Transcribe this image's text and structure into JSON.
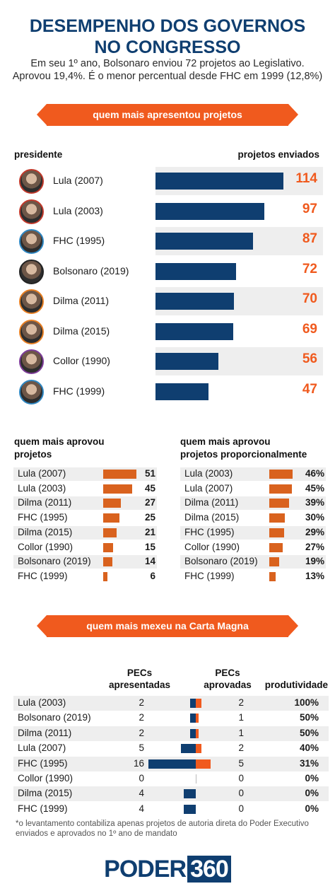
{
  "header": {
    "title_line1": "DESEMPENHO DOS GOVERNOS",
    "title_line2": "NO CONGRESSO",
    "subtitle_line1": "Em seu 1º ano, Bolsonaro enviou 72 projetos ao Legislativo.",
    "subtitle_line2": "Aprovou 19,4%. É o menor percentual desde FHC em 1999 (12,8%)"
  },
  "section1": {
    "banner": "quem mais apresentou projetos",
    "col_left": "presidente",
    "col_right": "projetos enviados"
  },
  "section2": {
    "left_title_line1": "quem mais aprovou",
    "left_title_line2": "projetos",
    "right_title_line1": "quem mais aprovou",
    "right_title_line2": "projetos proporcionalmente"
  },
  "section3": {
    "banner": "quem mais mexeu na Carta Magna",
    "col_presented_line1": "PECs",
    "col_presented_line2": "apresentadas",
    "col_approved_line1": "PECs",
    "col_approved_line2": "aprovadas",
    "col_productivity": "produtividade"
  },
  "footnote_line1": "*o levantamento contabiliza apenas projetos de autoria direta do Poder Executivo",
  "footnote_line2": "enviados e aprovados no 1º ano de mandato",
  "logo_left": "PODER",
  "logo_right": "360",
  "colors": {
    "navy": "#0f3e70",
    "orange": "#f05a1e",
    "orange_bar": "#d9621e",
    "row_gray": "#eeeeee"
  },
  "chart_data": [
    {
      "type": "bar",
      "orientation": "horizontal",
      "title": "quem mais apresentou projetos",
      "xlabel": "projetos enviados",
      "ylabel": "presidente",
      "categories": [
        "Lula (2007)",
        "Lula (2003)",
        "FHC (1995)",
        "Bolsonaro (2019)",
        "Dilma (2011)",
        "Dilma (2015)",
        "Collor (1990)",
        "FHC (1999)"
      ],
      "values": [
        114,
        97,
        87,
        72,
        70,
        69,
        56,
        47
      ],
      "xlim": [
        0,
        114
      ]
    },
    {
      "type": "bar",
      "orientation": "horizontal",
      "title": "quem mais aprovou projetos",
      "categories": [
        "Lula (2007)",
        "Lula (2003)",
        "Dilma (2011)",
        "FHC (1995)",
        "Dilma (2015)",
        "Collor (1990)",
        "Bolsonaro (2019)",
        "FHC (1999)"
      ],
      "values": [
        51,
        45,
        27,
        25,
        21,
        15,
        14,
        6
      ],
      "xlim": [
        0,
        51
      ]
    },
    {
      "type": "bar",
      "orientation": "horizontal",
      "title": "quem mais aprovou projetos proporcionalmente",
      "categories": [
        "Lula (2003)",
        "Lula (2007)",
        "Dilma (2011)",
        "Dilma (2015)",
        "FHC (1995)",
        "Collor (1990)",
        "Bolsonaro (2019)",
        "FHC (1999)"
      ],
      "values": [
        46,
        45,
        39,
        30,
        29,
        27,
        19,
        13
      ],
      "labels": [
        "46%",
        "45%",
        "39%",
        "30%",
        "29%",
        "27%",
        "19%",
        "13%"
      ],
      "xlim": [
        0,
        46
      ]
    },
    {
      "type": "bar",
      "orientation": "horizontal",
      "title": "quem mais mexeu na Carta Magna",
      "categories": [
        "Lula (2003)",
        "Bolsonaro (2019)",
        "Dilma (2011)",
        "Lula (2007)",
        "FHC (1995)",
        "Collor (1990)",
        "Dilma (2015)",
        "FHC (1999)"
      ],
      "series": [
        {
          "name": "PECs apresentadas",
          "values": [
            2,
            2,
            2,
            5,
            16,
            0,
            4,
            4
          ]
        },
        {
          "name": "PECs aprovadas",
          "values": [
            2,
            1,
            1,
            2,
            5,
            0,
            0,
            0
          ]
        }
      ],
      "productivity": [
        "100%",
        "50%",
        "50%",
        "40%",
        "31%",
        "0%",
        "0%",
        "0%"
      ]
    }
  ]
}
